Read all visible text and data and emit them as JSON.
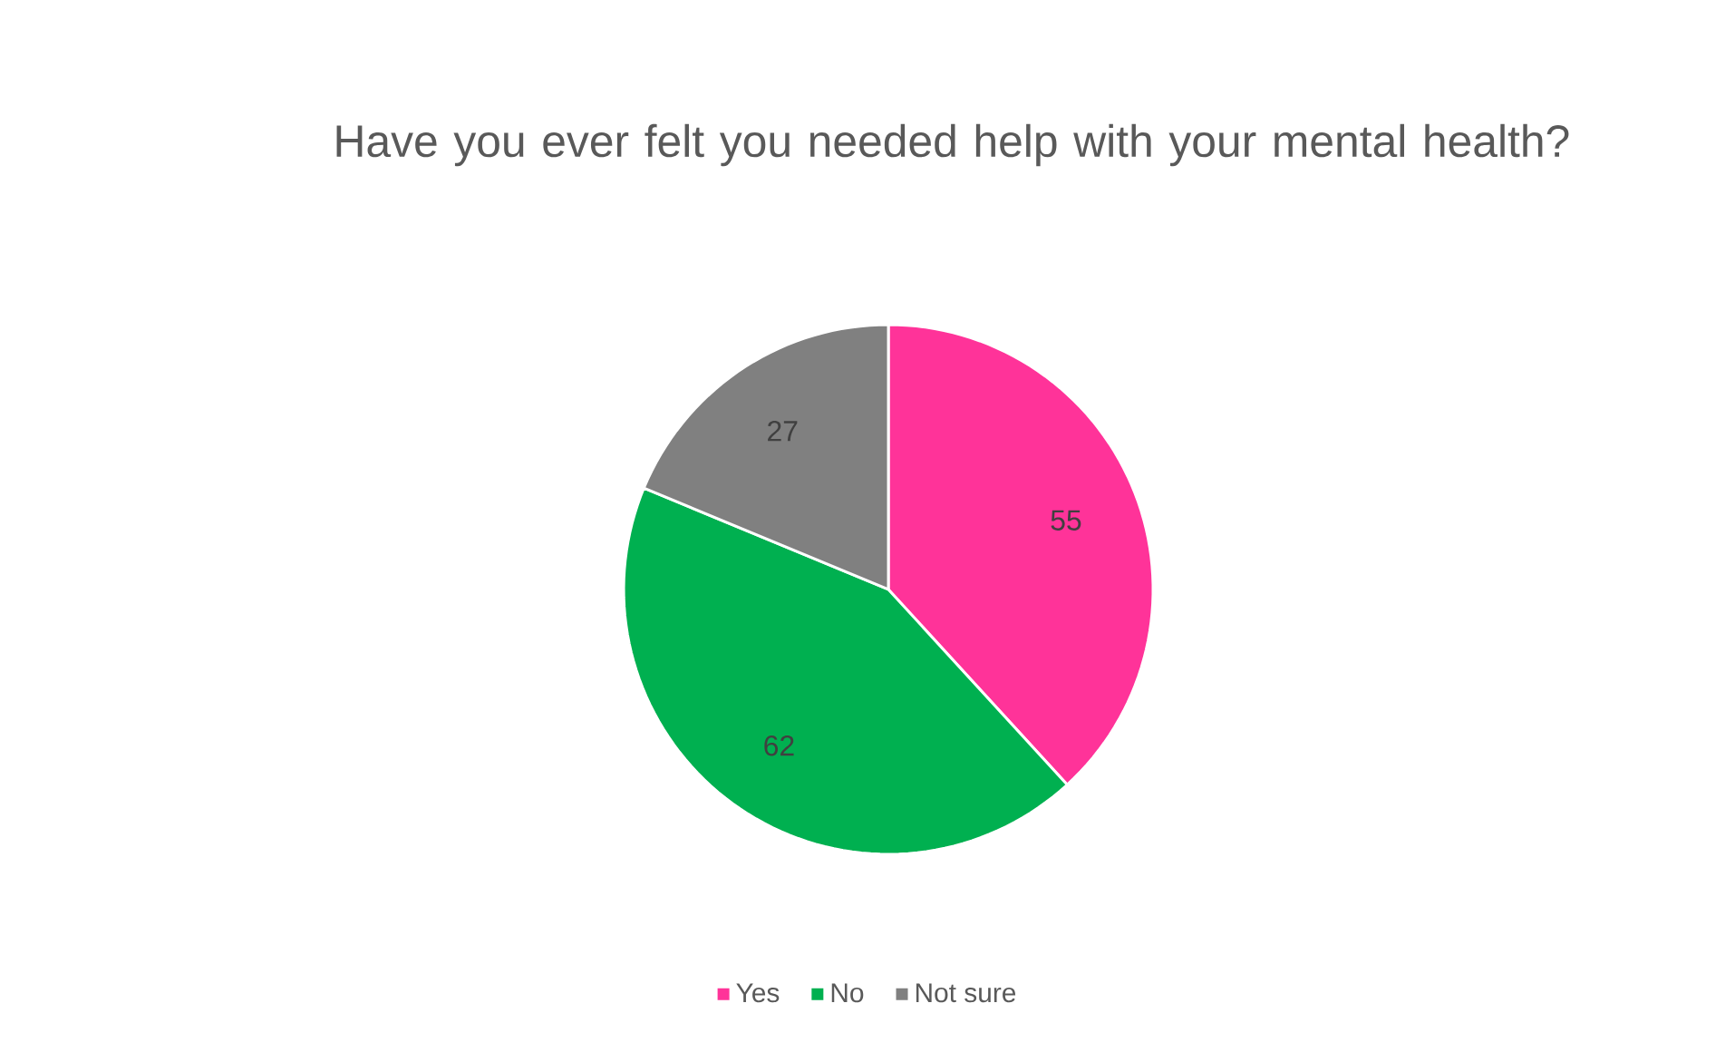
{
  "chart_data": {
    "type": "pie",
    "title": "Have you ever felt you needed help with your mental health?",
    "categories": [
      "Yes",
      "No",
      "Not sure"
    ],
    "values": [
      55,
      62,
      27
    ],
    "colors": [
      "#ff3399",
      "#00b050",
      "#808080"
    ],
    "data_labels": true,
    "legend": "bottom"
  }
}
